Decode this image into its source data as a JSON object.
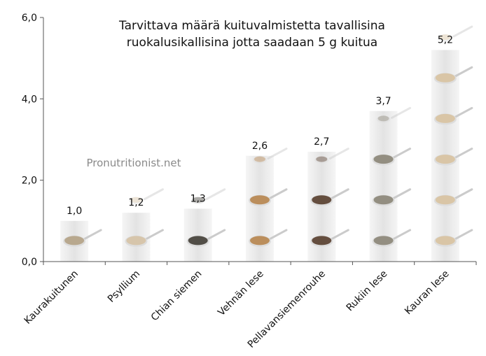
{
  "chart_data": {
    "type": "bar",
    "title_lines": [
      "Tarvittava määrä kuituvalmistetta tavallisina",
      "ruokalusikallisina jotta saadaan 5 g kuitua"
    ],
    "watermark": "Pronutritionist.net",
    "categories": [
      "Kaurakuitunen",
      "Psyllium",
      "Chian siemen",
      "Vehnän lese",
      "Pellavansiemenrouhe",
      "Rukiin lese",
      "Kauran lese"
    ],
    "values": [
      1.0,
      1.2,
      1.3,
      2.6,
      2.7,
      3.7,
      5.2
    ],
    "value_labels": [
      "1,0",
      "1,2",
      "1,3",
      "2,6",
      "2,7",
      "3,7",
      "5,2"
    ],
    "ylim": [
      0,
      6
    ],
    "yticks": [
      0,
      2,
      4,
      6
    ],
    "ytick_labels": [
      "0,0",
      "2,0",
      "4,0",
      "6,0"
    ],
    "xlabel": "",
    "ylabel": "",
    "grid": false,
    "legend": "none",
    "colors": {
      "column": "#e2e2e2",
      "axis": "#555555",
      "spoon": "#c9c9c9",
      "seed_colors": [
        "#b6a58a",
        "#d6c4a8",
        "#4a463f",
        "#b98a55",
        "#5e4636",
        "#8f8a7c",
        "#d9c4a3"
      ]
    }
  }
}
